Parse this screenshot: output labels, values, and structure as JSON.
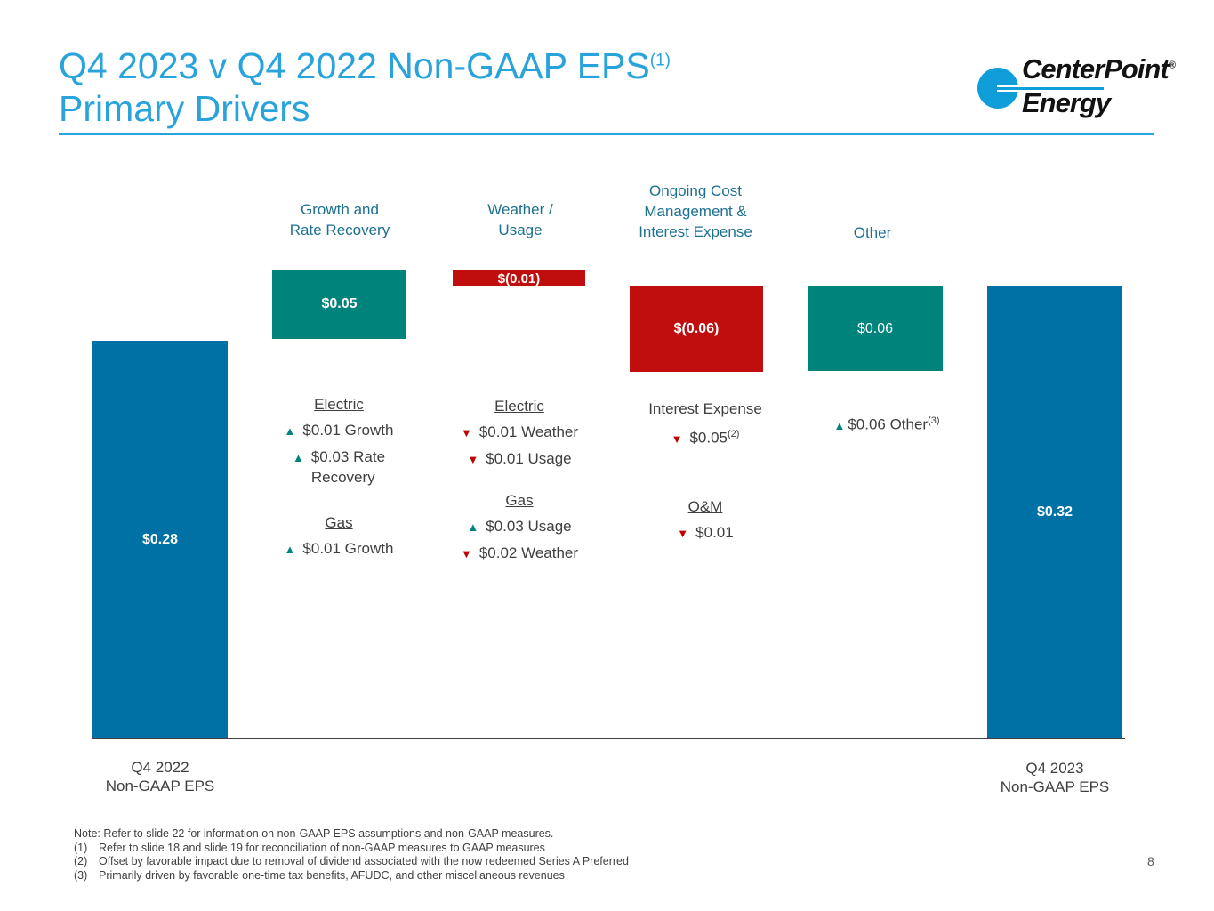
{
  "slide": {
    "title": "Q4 2023 v Q4 2022 Non-GAAP EPS",
    "title_footnote_ref": "(1)",
    "subtitle": "Primary Drivers",
    "page_number": "8"
  },
  "logo": {
    "company": "CenterPoint Energy",
    "word1": "CenterPoint",
    "registered_mark": "®",
    "word2": "Energy"
  },
  "colors": {
    "title_accent": "#29A3DB",
    "logo_blue": "#0F9ED9",
    "header_text": "#1D7090",
    "total_bar_blue": "#0071A4",
    "increase_teal": "#00837B",
    "decrease_red": "#C00D0D",
    "body_text": "#3F3F3F"
  },
  "glyphs": {
    "up": "▲",
    "down": "▼"
  },
  "chart_data": {
    "type": "bar",
    "subtype": "waterfall",
    "title": "Q4 2023 v Q4 2022 Non-GAAP EPS Primary Drivers",
    "unit": "$ per share (non-GAAP EPS)",
    "categories": [
      "Q4 2022 Non-GAAP EPS",
      "Growth and Rate Recovery",
      "Weather / Usage",
      "Ongoing Cost Management & Interest Expense",
      "Other",
      "Q4 2023 Non-GAAP EPS"
    ],
    "values": [
      0.28,
      0.05,
      -0.01,
      -0.06,
      0.06,
      0.32
    ],
    "running_totals": [
      0.28,
      0.33,
      0.32,
      0.26,
      0.32,
      0.32
    ],
    "bar_labels": [
      "$0.28",
      "$0.05",
      "$(0.01)",
      "$(0.06)",
      "$0.06",
      "$0.32"
    ],
    "bar_roles": [
      "total",
      "increase",
      "decrease",
      "decrease",
      "increase",
      "total"
    ],
    "ylim": [
      0,
      0.33
    ],
    "grid": false,
    "legend": false
  },
  "column_headers": [
    {
      "label": "Growth and\nRate Recovery"
    },
    {
      "label": "Weather /\nUsage"
    },
    {
      "label": "Ongoing Cost\nManagement &\nInterest Expense"
    },
    {
      "label": "Other"
    }
  ],
  "annotations": {
    "growth": {
      "sections": [
        {
          "heading": "Electric",
          "items": [
            {
              "dir": "up",
              "text": "$0.01 Growth"
            },
            {
              "dir": "up",
              "text": "$0.03 Rate\nRecovery"
            }
          ]
        },
        {
          "heading": "Gas",
          "items": [
            {
              "dir": "up",
              "text": "$0.01 Growth"
            }
          ]
        }
      ]
    },
    "weather": {
      "sections": [
        {
          "heading": "Electric",
          "items": [
            {
              "dir": "down",
              "text": "$0.01 Weather"
            },
            {
              "dir": "down",
              "text": "$0.01 Usage"
            }
          ]
        },
        {
          "heading": "Gas",
          "items": [
            {
              "dir": "up",
              "text": "$0.03 Usage"
            },
            {
              "dir": "down",
              "text": "$0.02 Weather"
            }
          ]
        }
      ]
    },
    "cost": {
      "sections": [
        {
          "heading": "Interest Expense",
          "items": [
            {
              "dir": "down",
              "text": "$0.05",
              "sup": "(2)"
            }
          ]
        },
        {
          "heading": "O&M",
          "items": [
            {
              "dir": "down",
              "text": "$0.01"
            }
          ]
        }
      ]
    },
    "other": {
      "items": [
        {
          "dir": "up",
          "text": "$0.06 Other",
          "sup": "(3)"
        }
      ]
    }
  },
  "axis_labels": [
    {
      "label": "Q4 2022\nNon-GAAP EPS"
    },
    {
      "label": "Q4 2023\nNon-GAAP EPS"
    }
  ],
  "footnotes": [
    {
      "num": "",
      "text": "Note: Refer to slide 22 for information on non-GAAP EPS assumptions and non-GAAP measures."
    },
    {
      "num": "(1)",
      "text": "Refer to slide 18 and slide 19 for reconciliation of non-GAAP measures to GAAP measures"
    },
    {
      "num": "(2)",
      "text": "Offset by favorable impact due to removal of dividend associated with the now redeemed Series A Preferred"
    },
    {
      "num": "(3)",
      "text": "Primarily driven by favorable one-time tax benefits, AFUDC, and other miscellaneous revenues"
    }
  ]
}
